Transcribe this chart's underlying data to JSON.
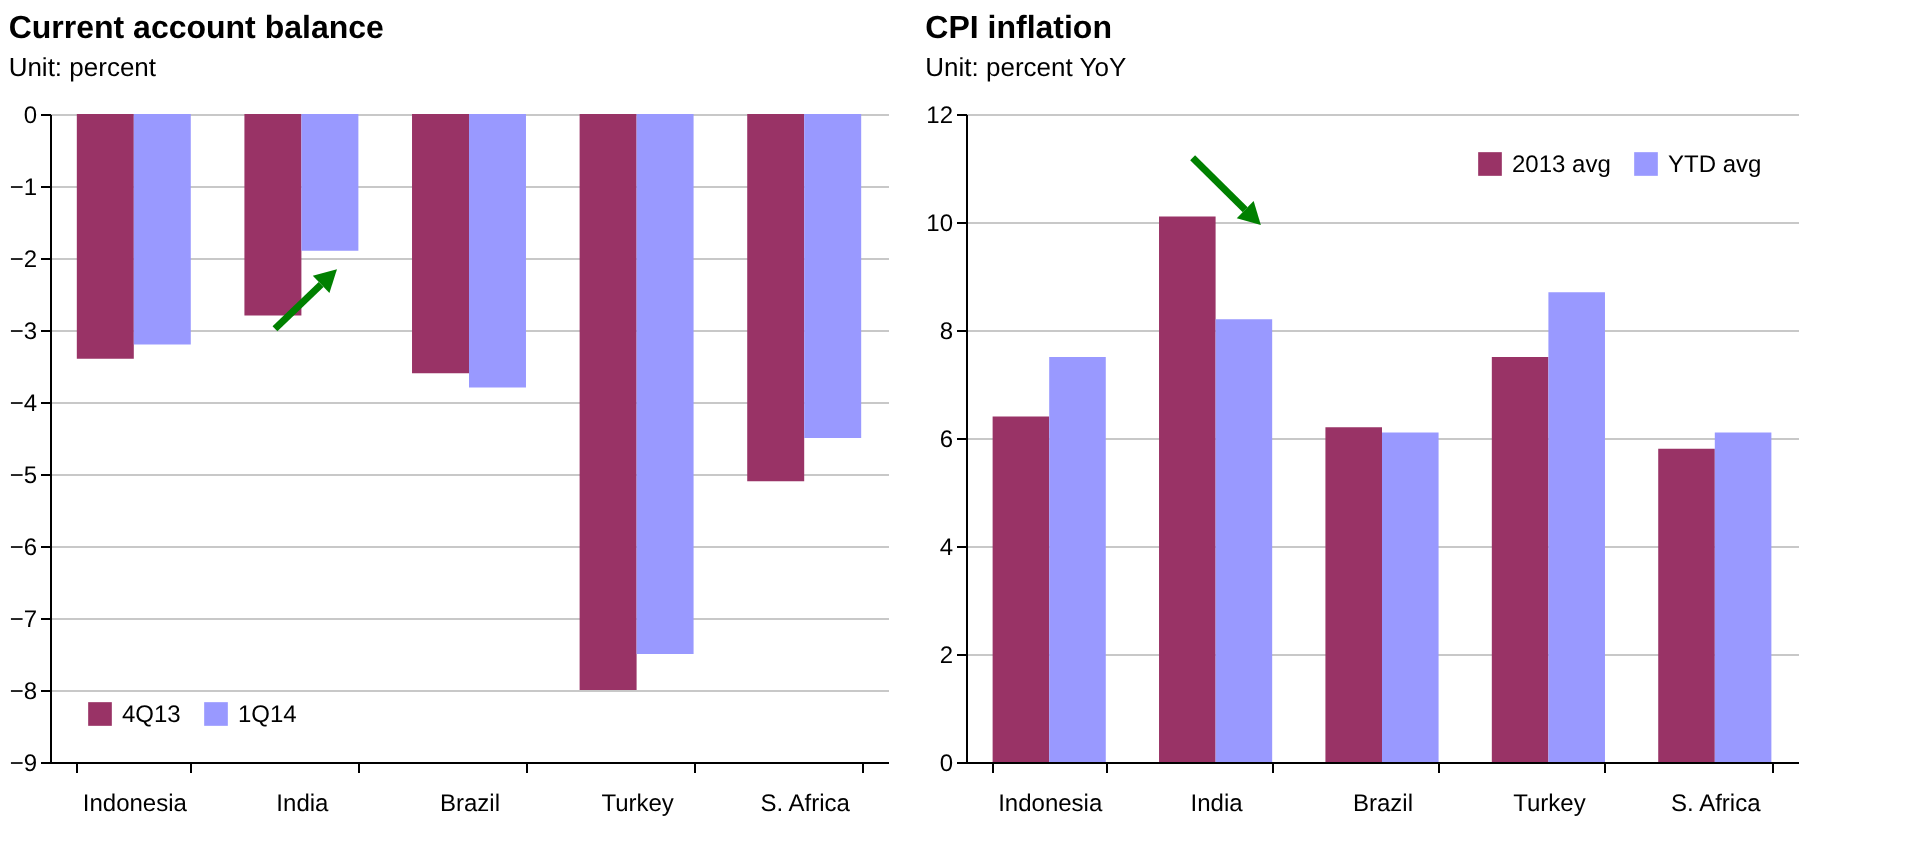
{
  "chart_data": [
    {
      "type": "bar",
      "title": "Current account balance",
      "subtitle": "Unit: percent",
      "categories": [
        "Indonesia",
        "India",
        "Brazil",
        "Turkey",
        "S. Africa"
      ],
      "series": [
        {
          "name": "4Q13",
          "color": "#993366",
          "values": [
            -3.4,
            -2.8,
            -3.6,
            -8.0,
            -5.1
          ]
        },
        {
          "name": "1Q14",
          "color": "#9999ff",
          "values": [
            -3.2,
            -1.9,
            -3.8,
            -7.5,
            -4.5
          ]
        }
      ],
      "ylim": [
        -9,
        0
      ],
      "yticks": [
        -9,
        -8,
        -7,
        -6,
        -5,
        -4,
        -3,
        -2,
        -1,
        0
      ],
      "grid": "y",
      "legend": "bottom left"
    },
    {
      "type": "bar",
      "title": "CPI inflation",
      "subtitle": "Unit: percent YoY",
      "categories": [
        "Indonesia",
        "India",
        "Brazil",
        "Turkey",
        "S. Africa"
      ],
      "series": [
        {
          "name": "2013 avg",
          "color": "#993366",
          "values": [
            6.4,
            10.1,
            6.2,
            7.5,
            5.8
          ]
        },
        {
          "name": "YTD avg",
          "color": "#9999ff",
          "values": [
            7.5,
            8.2,
            6.1,
            8.7,
            6.1
          ]
        }
      ],
      "ylim": [
        0,
        12
      ],
      "yticks": [
        0,
        2,
        4,
        6,
        8,
        10,
        12
      ],
      "grid": "y",
      "legend": "top right"
    }
  ]
}
